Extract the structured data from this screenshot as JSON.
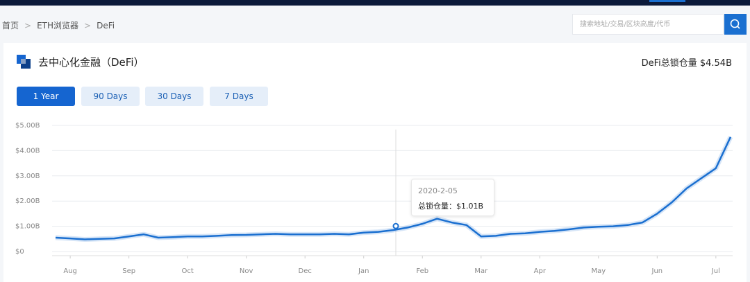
{
  "breadcrumb": {
    "items": [
      "首页",
      "ETH浏览器",
      "DeFi"
    ],
    "separator": ">"
  },
  "search": {
    "placeholder": "搜索地址/交易/区块高度/代币"
  },
  "header": {
    "title": "去中心化金融（DeFi）",
    "total": "DeFi总锁仓量 $4.54B"
  },
  "tabs": [
    "1 Year",
    "90 Days",
    "30 Days",
    "7 Days"
  ],
  "tooltip": {
    "date": "2020-2-05",
    "label": "总锁仓量：",
    "value": 1.01,
    "value_label": "$1.01B"
  },
  "chart_data": {
    "type": "line",
    "categories": [
      null,
      "Aug",
      null,
      null,
      null,
      "Sep",
      null,
      null,
      null,
      "Oct",
      null,
      null,
      null,
      "Nov",
      null,
      null,
      null,
      "Dec",
      null,
      null,
      null,
      "Jan",
      null,
      null,
      null,
      "Feb",
      null,
      null,
      null,
      "Mar",
      null,
      null,
      null,
      "Apr",
      null,
      null,
      null,
      "May",
      null,
      null,
      null,
      "Jun",
      null,
      null,
      null,
      "Jul",
      null
    ],
    "series": [
      {
        "name": "总锁仓量",
        "color": "#1a6fd0",
        "values": [
          0.55,
          0.52,
          0.48,
          0.5,
          0.52,
          0.6,
          0.68,
          0.55,
          0.57,
          0.6,
          0.6,
          0.62,
          0.65,
          0.66,
          0.68,
          0.7,
          0.68,
          0.68,
          0.68,
          0.7,
          0.68,
          0.75,
          0.78,
          0.85,
          0.95,
          1.1,
          1.3,
          1.15,
          1.05,
          0.6,
          0.62,
          0.7,
          0.72,
          0.78,
          0.82,
          0.88,
          0.95,
          0.98,
          1.0,
          1.05,
          1.15,
          1.5,
          1.95,
          2.5,
          2.9,
          3.3,
          4.54
        ]
      }
    ],
    "ylim": [
      0,
      5
    ],
    "yticks": [
      {
        "value": 0,
        "label": "$0"
      },
      {
        "value": 1,
        "label": "$1.00B"
      },
      {
        "value": 2,
        "label": "$2.00B"
      },
      {
        "value": 3,
        "label": "$3.00B"
      },
      {
        "value": 4,
        "label": "$4.00B"
      },
      {
        "value": 5,
        "label": "$5.00B"
      }
    ],
    "grid": true
  }
}
